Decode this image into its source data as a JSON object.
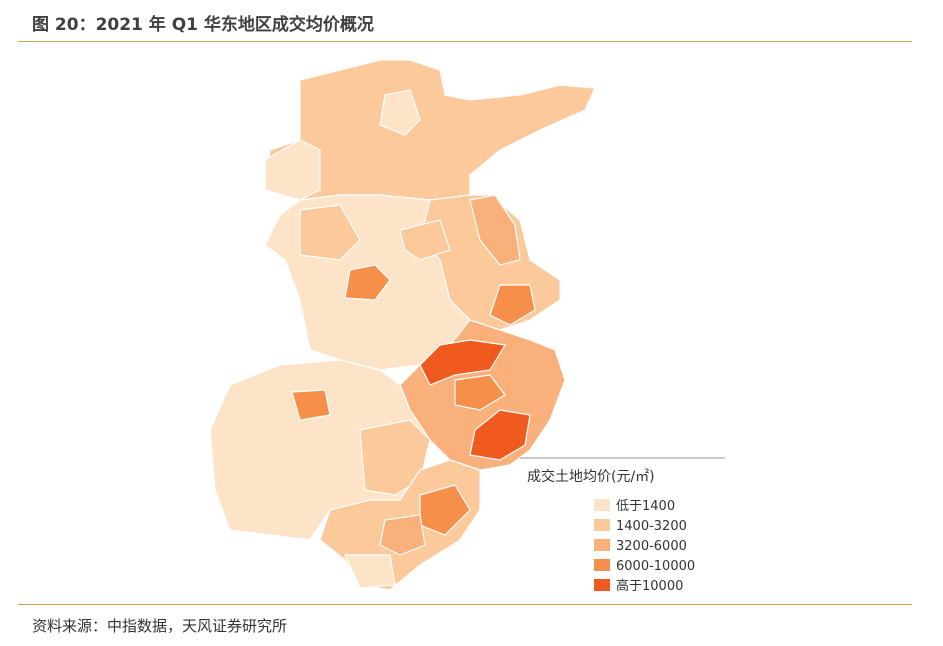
{
  "header": {
    "title": "图 20：2021 年 Q1 华东地区成交均价概况"
  },
  "legend": {
    "title": "成交土地均价(元/㎡)",
    "items": [
      {
        "label": "低于1400",
        "color": "#fde4c8"
      },
      {
        "label": "1400-3200",
        "color": "#fbc99a"
      },
      {
        "label": "3200-6000",
        "color": "#f9b07a"
      },
      {
        "label": "6000-10000",
        "color": "#f68f4a"
      },
      {
        "label": "高于10000",
        "color": "#f05a1e"
      }
    ]
  },
  "footer": {
    "source": "资料来源：中指数据，天风证券研究所"
  }
}
